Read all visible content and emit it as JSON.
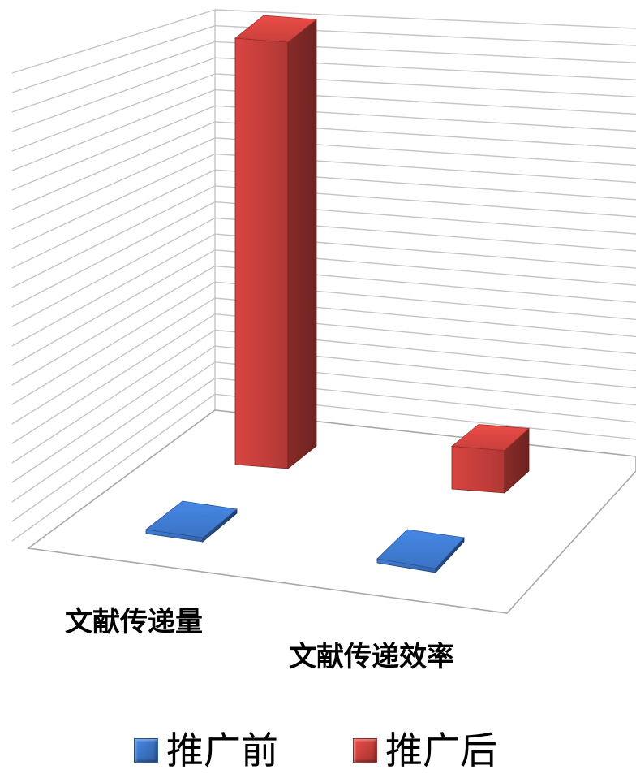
{
  "chart_data": {
    "type": "bar",
    "subtype": "3d-column",
    "categories": [
      "文献传递量",
      "文献传递效率"
    ],
    "series": [
      {
        "name": "推广前",
        "values": [
          0,
          0
        ],
        "color": "#3b73c3"
      },
      {
        "name": "推广后",
        "values": [
          25,
          2.5
        ],
        "color": "#c8403c"
      }
    ],
    "title": "",
    "xlabel": "",
    "ylabel": "",
    "ylim": [
      0,
      25
    ],
    "grid": true,
    "legend": "bottom"
  }
}
